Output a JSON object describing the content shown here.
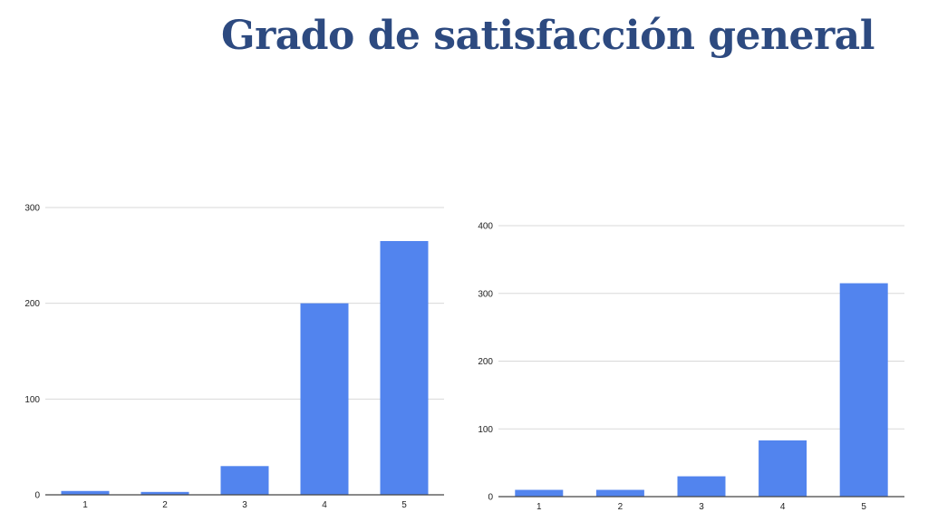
{
  "page": {
    "title": "Grado de satisfacción general"
  },
  "colors": {
    "bar": "#5284ee",
    "title": "#2d4a80",
    "grid": "#d9d9d9",
    "axis": "#444444"
  },
  "chart_data": [
    {
      "type": "bar",
      "title": "",
      "xlabel": "",
      "ylabel": "",
      "categories": [
        "1",
        "2",
        "3",
        "4",
        "5"
      ],
      "values": [
        4,
        3,
        30,
        200,
        265
      ],
      "ylim": [
        0,
        300
      ],
      "yticks": [
        0,
        100,
        200,
        300
      ],
      "grid": true,
      "legend": "none"
    },
    {
      "type": "bar",
      "title": "",
      "xlabel": "",
      "ylabel": "",
      "categories": [
        "1",
        "2",
        "3",
        "4",
        "5"
      ],
      "values": [
        10,
        10,
        30,
        83,
        315
      ],
      "ylim": [
        0,
        400
      ],
      "yticks": [
        0,
        100,
        200,
        300,
        400
      ],
      "grid": true,
      "legend": "none"
    }
  ]
}
